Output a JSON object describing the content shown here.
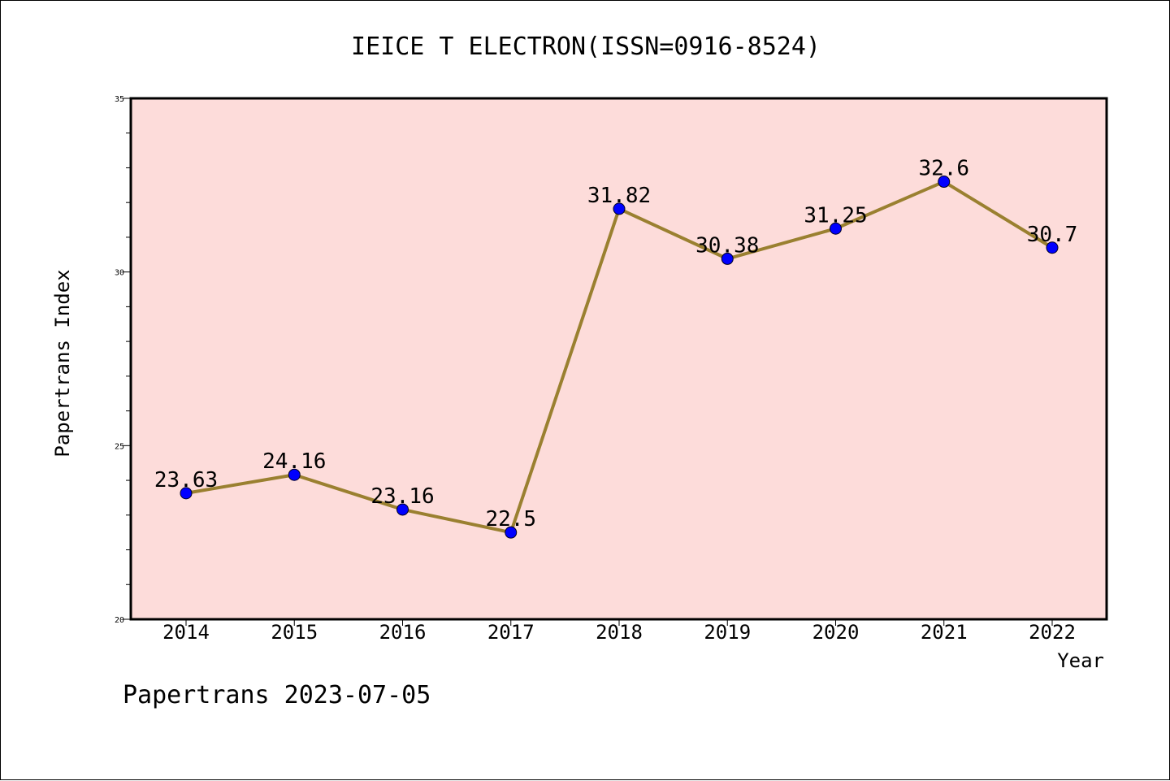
{
  "chart_data": {
    "type": "line",
    "title": "IEICE T ELECTRON(ISSN=0916-8524)",
    "xlabel": "Year",
    "ylabel": "Papertrans Index",
    "categories": [
      "2014",
      "2015",
      "2016",
      "2017",
      "2018",
      "2019",
      "2020",
      "2021",
      "2022"
    ],
    "values": [
      23.63,
      24.16,
      23.16,
      22.5,
      31.82,
      30.38,
      31.25,
      32.6,
      30.7
    ],
    "data_labels": [
      "23.63",
      "24.16",
      "23.16",
      "22.5",
      "31.82",
      "30.38",
      "31.25",
      "32.6",
      "30.7"
    ],
    "ylim": [
      20,
      35
    ],
    "yticks": [
      "20",
      "25",
      "30",
      "35"
    ],
    "grid": false,
    "legend": "none",
    "colors": {
      "plot_background": "#fddcda",
      "line": "#9a8030",
      "marker": "#0000ff"
    }
  },
  "footer": "Papertrans 2023-07-05"
}
